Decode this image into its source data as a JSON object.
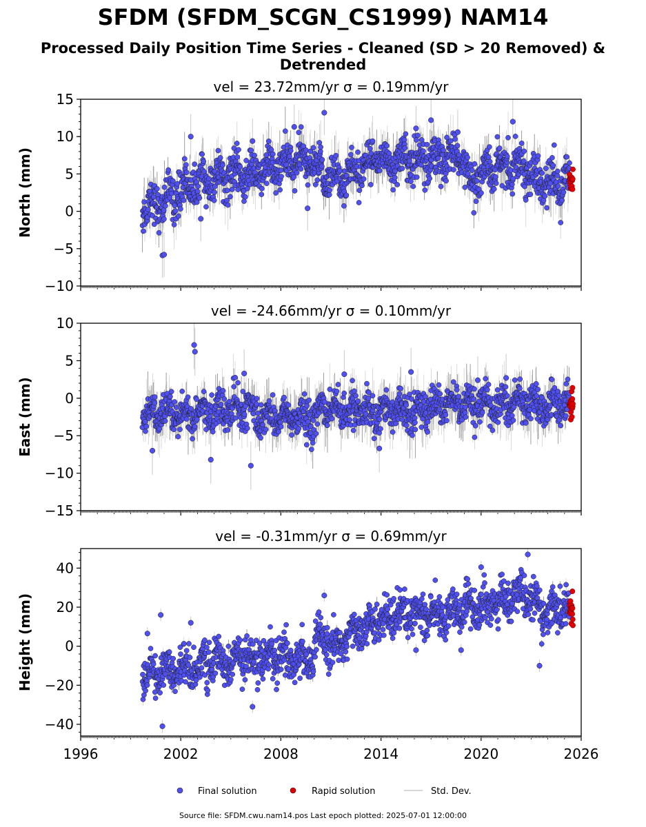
{
  "figure": {
    "title": "SFDM (SFDM_SCGN_CS1999) NAM14",
    "subtitle": "Processed Daily Position Time Series - Cleaned (SD > 20 Removed) & Detrended",
    "source_note": "Source file: SFDM.cwu.nam14.pos  Last epoch plotted: 2025-07-01 12:00:00"
  },
  "legend": {
    "final": "Final solution",
    "rapid": "Rapid solution",
    "std": "Std. Dev."
  },
  "colors": {
    "final_fill": "#5050f0",
    "final_edge": "#1a1a1a",
    "rapid_fill": "#e00000",
    "std": "#c8c8c8",
    "axis": "#000000"
  },
  "chart_data": [
    {
      "type": "scatter",
      "component": "north",
      "title": "vel = 23.72mm/yr   σ = 0.19mm/yr",
      "ylabel": "North (mm)",
      "xlim": [
        1996,
        2026
      ],
      "ylim": [
        -10,
        15
      ],
      "yticks": [
        -10,
        -5,
        0,
        5,
        10,
        15
      ],
      "data_start": 1999.7,
      "data_end": 2025.5,
      "rapid_start": 2025.3,
      "trend": [
        [
          1999.7,
          0.5
        ],
        [
          2001.2,
          1.5
        ],
        [
          2002.5,
          3.5
        ],
        [
          2004.5,
          4.5
        ],
        [
          2006.5,
          5.0
        ],
        [
          2008.5,
          6.5
        ],
        [
          2009.8,
          6.5
        ],
        [
          2010.5,
          5.0
        ],
        [
          2012.0,
          4.5
        ],
        [
          2013.0,
          6.5
        ],
        [
          2015.0,
          7.0
        ],
        [
          2017.0,
          7.0
        ],
        [
          2018.8,
          7.0
        ],
        [
          2019.3,
          4.5
        ],
        [
          2020.5,
          5.5
        ],
        [
          2022.5,
          6.5
        ],
        [
          2023.3,
          4.0
        ],
        [
          2024.5,
          3.5
        ],
        [
          2025.5,
          4.5
        ]
      ],
      "spread": 3.0,
      "std_scale": 1.5,
      "outliers": [
        [
          2000.9,
          -5.9
        ],
        [
          2001.0,
          -5.8
        ],
        [
          2002.6,
          10.0
        ],
        [
          2010.6,
          13.2
        ],
        [
          2017.0,
          12.2
        ],
        [
          2021.9,
          12.0
        ],
        [
          2006.3,
          9.4
        ],
        [
          2008.8,
          11.3
        ],
        [
          2009.6,
          0.4
        ],
        [
          2016.1,
          11.1
        ],
        [
          2018.6,
          10.6
        ],
        [
          2003.2,
          -1.0
        ]
      ]
    },
    {
      "type": "scatter",
      "component": "east",
      "title": "vel = -24.66mm/yr   σ = 0.10mm/yr",
      "ylabel": "East (mm)",
      "xlim": [
        1996,
        2026
      ],
      "ylim": [
        -15,
        10
      ],
      "yticks": [
        -15,
        -10,
        -5,
        0,
        5,
        10
      ],
      "data_start": 1999.7,
      "data_end": 2025.5,
      "rapid_start": 2025.3,
      "trend": [
        [
          1999.7,
          -1.5
        ],
        [
          2001.0,
          -2.5
        ],
        [
          2003.0,
          -2.0
        ],
        [
          2005.0,
          -1.5
        ],
        [
          2006.0,
          -1.0
        ],
        [
          2006.5,
          -2.5
        ],
        [
          2008.5,
          -2.5
        ],
        [
          2010.0,
          -3.0
        ],
        [
          2010.5,
          -1.0
        ],
        [
          2012.0,
          -2.0
        ],
        [
          2014.0,
          -1.5
        ],
        [
          2016.0,
          -1.5
        ],
        [
          2018.0,
          -1.0
        ],
        [
          2020.0,
          -1.0
        ],
        [
          2022.0,
          -0.5
        ],
        [
          2024.0,
          -1.0
        ],
        [
          2025.5,
          -1.0
        ]
      ],
      "spread": 2.6,
      "std_scale": 1.6,
      "outliers": [
        [
          2002.8,
          7.1
        ],
        [
          2002.85,
          6.2
        ],
        [
          2006.2,
          -9.0
        ],
        [
          2003.8,
          -8.2
        ],
        [
          2000.3,
          -7.0
        ],
        [
          2015.8,
          3.5
        ],
        [
          2011.8,
          3.2
        ],
        [
          2013.9,
          -6.7
        ],
        [
          2019.8,
          2.4
        ],
        [
          2021.5,
          2.7
        ],
        [
          2005.8,
          3.3
        ]
      ]
    },
    {
      "type": "scatter",
      "component": "height",
      "title": "vel = -0.31mm/yr   σ = 0.69mm/yr",
      "ylabel": "Height (mm)",
      "xlim": [
        1996,
        2026
      ],
      "ylim": [
        -46,
        50
      ],
      "yticks": [
        -40,
        -20,
        0,
        20,
        40
      ],
      "xticks": [
        1996,
        2002,
        2008,
        2014,
        2020,
        2026
      ],
      "data_start": 1999.7,
      "data_end": 2025.5,
      "rapid_start": 2025.3,
      "trend": [
        [
          1999.7,
          -15
        ],
        [
          2001.0,
          -12
        ],
        [
          2003.0,
          -10
        ],
        [
          2005.0,
          -8
        ],
        [
          2007.0,
          -5
        ],
        [
          2009.0,
          -7
        ],
        [
          2009.9,
          -5
        ],
        [
          2010.3,
          6
        ],
        [
          2011.0,
          0
        ],
        [
          2012.5,
          8
        ],
        [
          2014.0,
          14
        ],
        [
          2015.5,
          18
        ],
        [
          2017.0,
          15
        ],
        [
          2018.5,
          18
        ],
        [
          2020.0,
          20
        ],
        [
          2021.5,
          24
        ],
        [
          2022.5,
          28
        ],
        [
          2023.2,
          20
        ],
        [
          2024.0,
          18
        ],
        [
          2025.5,
          20
        ]
      ],
      "spread": 11,
      "std_scale": 1.6,
      "outliers": [
        [
          2000.8,
          16.0
        ],
        [
          2000.9,
          -41.0
        ],
        [
          2002.6,
          12.0
        ],
        [
          2022.8,
          47.0
        ],
        [
          2020.0,
          40.5
        ],
        [
          2018.8,
          -2.0
        ],
        [
          2016.1,
          -2.0
        ],
        [
          2010.6,
          26.0
        ],
        [
          2023.5,
          -10.0
        ],
        [
          2006.3,
          -31.0
        ],
        [
          2000.0,
          6.5
        ]
      ]
    }
  ]
}
